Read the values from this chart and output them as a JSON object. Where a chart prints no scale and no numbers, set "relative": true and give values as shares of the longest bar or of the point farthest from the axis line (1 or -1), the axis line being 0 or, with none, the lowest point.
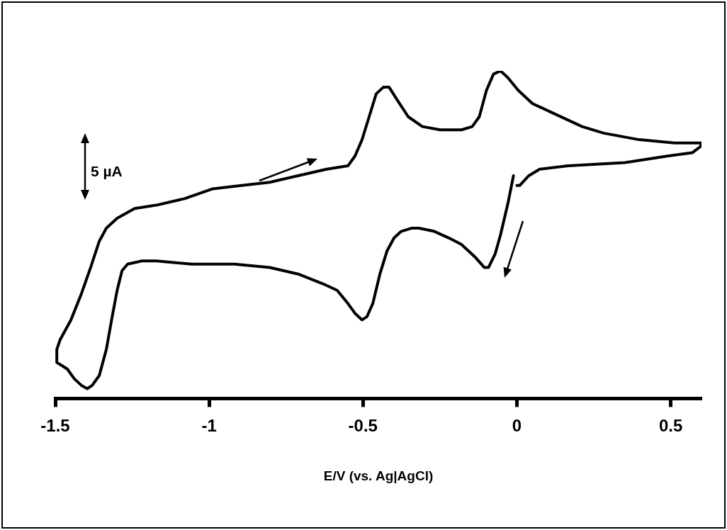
{
  "chart_data": {
    "type": "line",
    "relative": true,
    "xlabel": "E/V (vs. Ag|AgCl)",
    "annotations": [
      "5 µA"
    ],
    "marker": "none",
    "xlim": [
      -1.5,
      0.6
    ],
    "xticks": [
      -1.5,
      -1,
      -0.5,
      0,
      0.5
    ],
    "x": [
      -0.011,
      -0.028,
      -0.053,
      -0.071,
      -0.092,
      -0.106,
      -0.134,
      -0.18,
      -0.221,
      -0.268,
      -0.318,
      -0.341,
      -0.376,
      -0.399,
      -0.422,
      -0.445,
      -0.468,
      -0.487,
      -0.503,
      -0.526,
      -0.549,
      -0.584,
      -0.63,
      -0.711,
      -0.803,
      -0.918,
      -1.057,
      -1.172,
      -1.218,
      -1.265,
      -1.283,
      -1.299,
      -1.315,
      -1.334,
      -1.357,
      -1.38,
      -1.396,
      -1.415,
      -1.438,
      -1.461,
      -1.495,
      -1.495,
      -1.484,
      -1.449,
      -1.415,
      -1.385,
      -1.357,
      -1.334,
      -1.299,
      -1.242,
      -1.172,
      -1.08,
      -0.988,
      -0.895,
      -0.803,
      -0.711,
      -0.618,
      -0.549,
      -0.526,
      -0.503,
      -0.48,
      -0.457,
      -0.434,
      -0.415,
      -0.388,
      -0.353,
      -0.307,
      -0.249,
      -0.18,
      -0.145,
      -0.122,
      -0.099,
      -0.076,
      -0.053,
      -0.03,
      0.005,
      0.051,
      0.12,
      0.212,
      0.282,
      0.397,
      0.512,
      0.598,
      0.598,
      0.57,
      0.489,
      0.351,
      0.166,
      0.074,
      0.039,
      0.009,
      0
    ],
    "series": [
      {
        "color": "#000000",
        "values": [
          0.68,
          0.6,
          0.5,
          0.44,
          0.4,
          0.4,
          0.43,
          0.47,
          0.49,
          0.51,
          0.52,
          0.52,
          0.51,
          0.49,
          0.45,
          0.38,
          0.29,
          0.25,
          0.24,
          0.26,
          0.29,
          0.33,
          0.35,
          0.38,
          0.4,
          0.41,
          0.41,
          0.42,
          0.42,
          0.41,
          0.39,
          0.33,
          0.25,
          0.15,
          0.07,
          0.04,
          0.03,
          0.04,
          0.06,
          0.09,
          0.11,
          0.15,
          0.18,
          0.24,
          0.32,
          0.4,
          0.48,
          0.52,
          0.55,
          0.58,
          0.59,
          0.61,
          0.64,
          0.65,
          0.66,
          0.68,
          0.7,
          0.71,
          0.74,
          0.79,
          0.86,
          0.93,
          0.95,
          0.95,
          0.91,
          0.86,
          0.83,
          0.82,
          0.82,
          0.83,
          0.86,
          0.94,
          0.99,
          1.0,
          0.98,
          0.94,
          0.9,
          0.87,
          0.83,
          0.81,
          0.79,
          0.78,
          0.78,
          0.77,
          0.75,
          0.74,
          0.72,
          0.71,
          0.7,
          0.68,
          0.65,
          0.65
        ]
      }
    ]
  }
}
